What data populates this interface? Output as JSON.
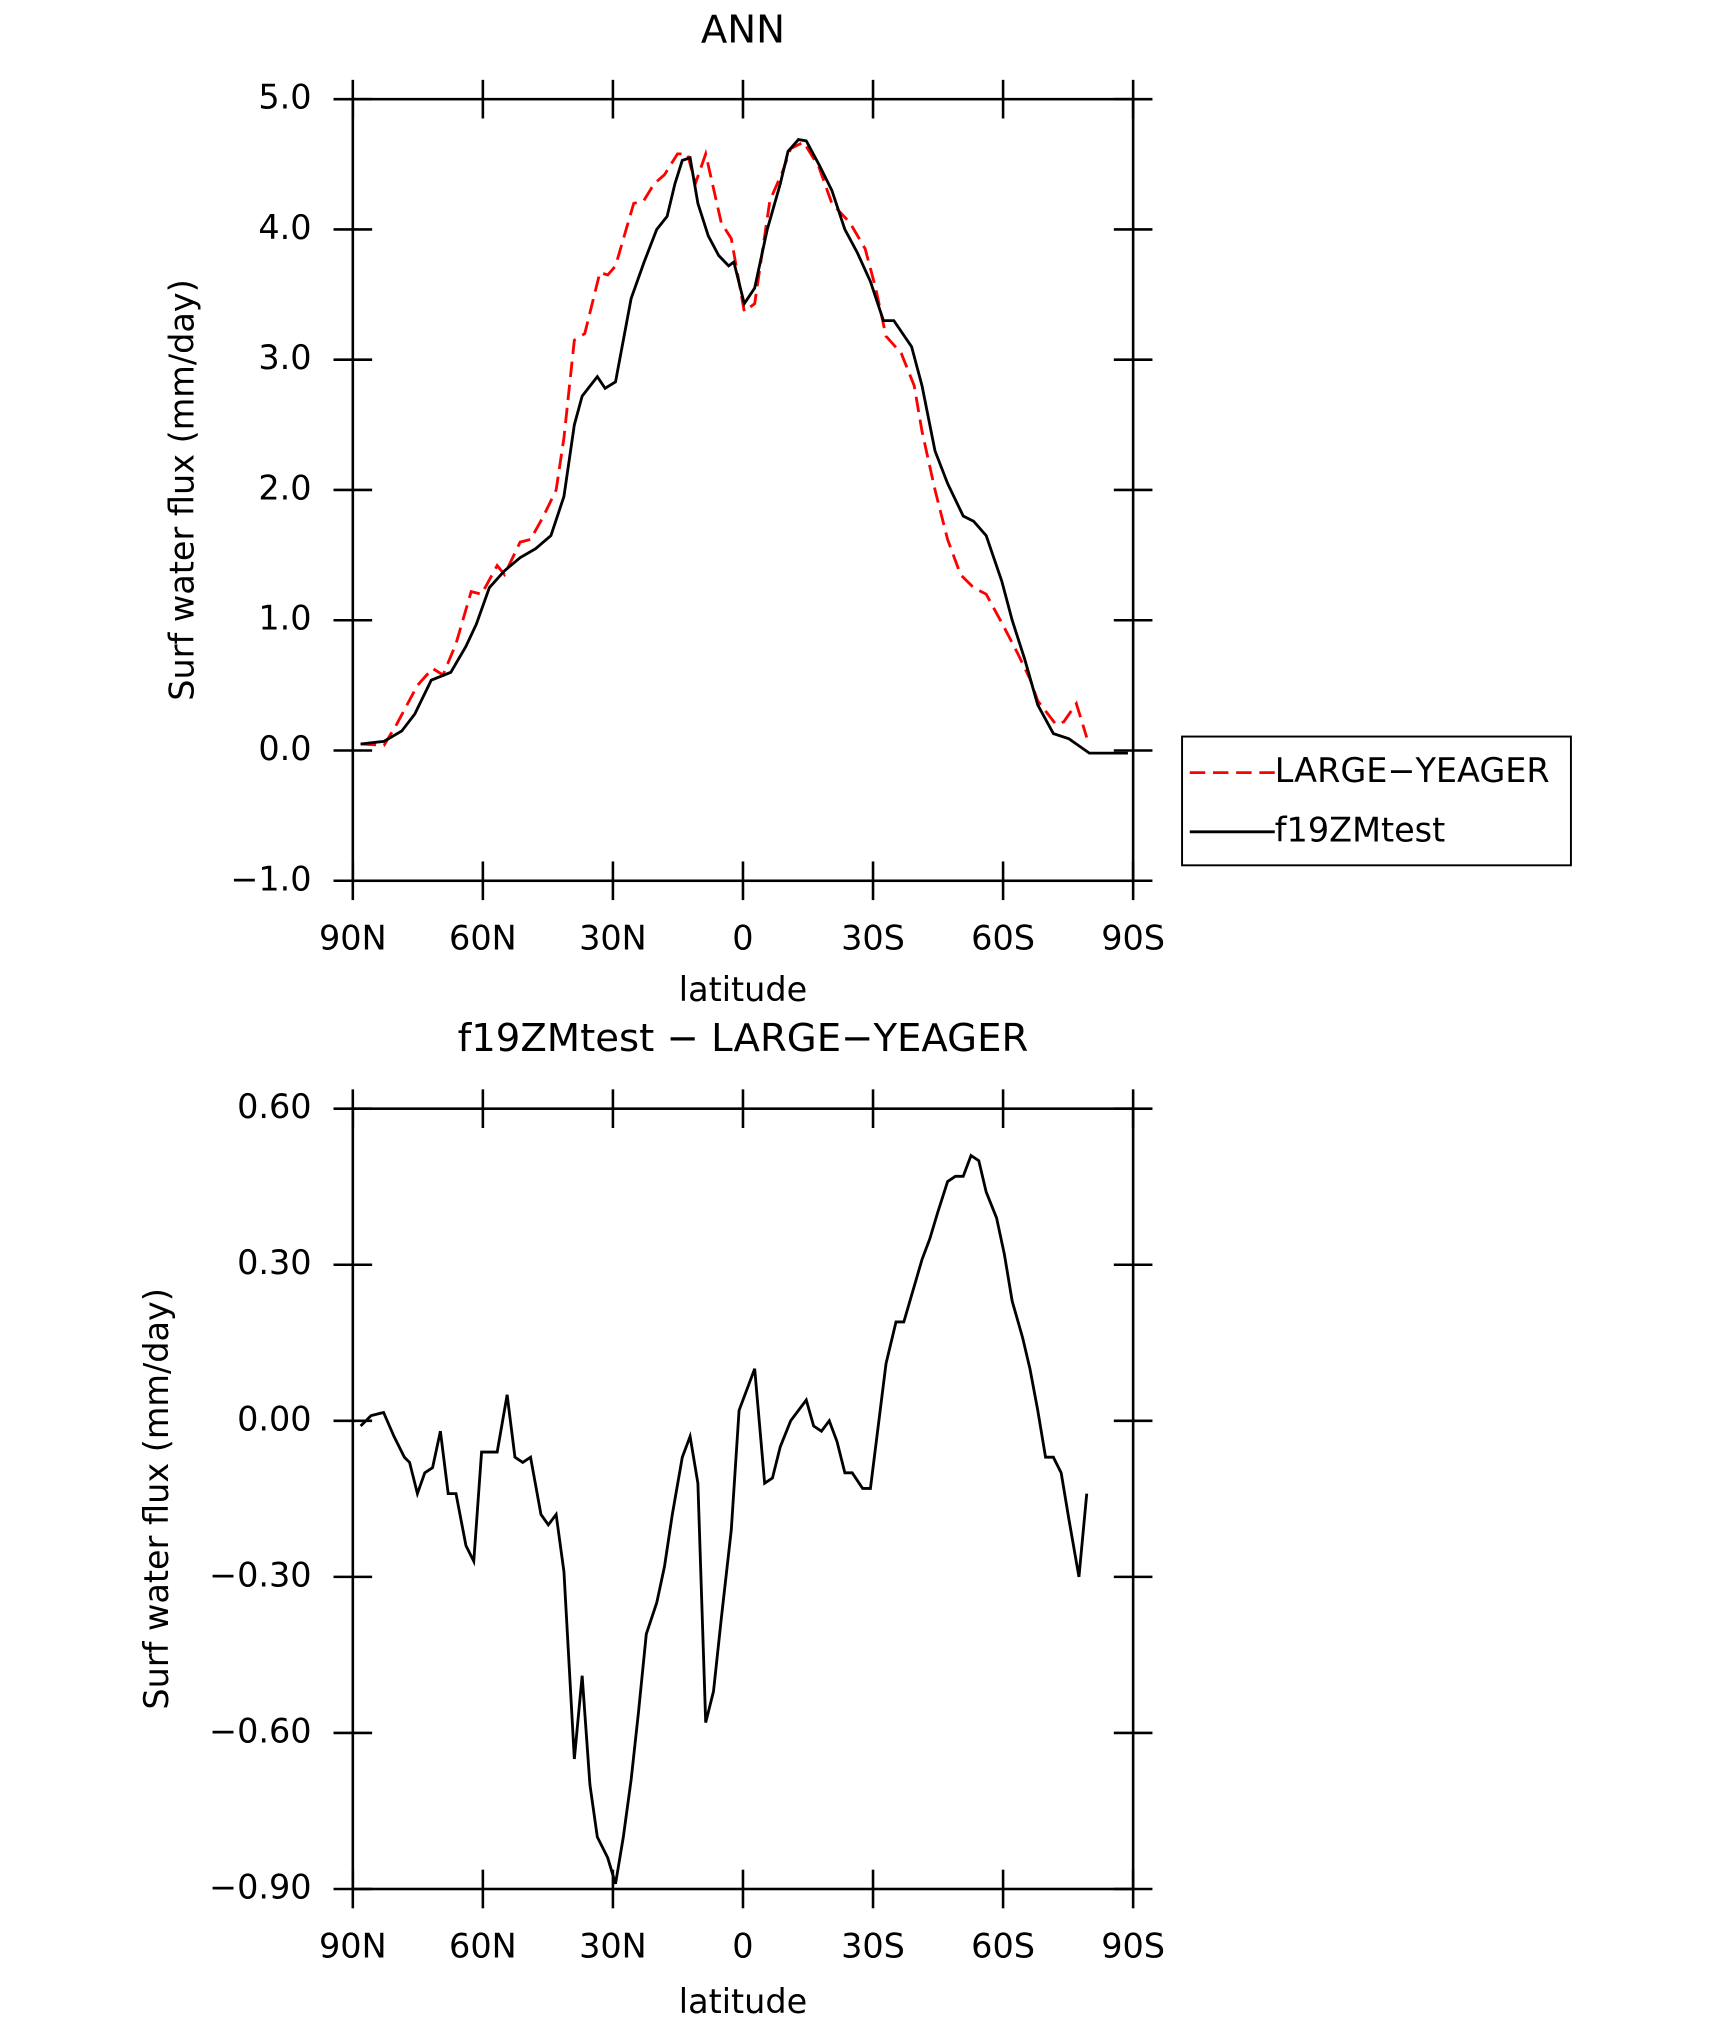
{
  "chart_data": [
    {
      "type": "line",
      "title": "ANN",
      "xlabel": "latitude",
      "ylabel": "Surf water flux (mm/day)",
      "xlim": [
        90,
        -90
      ],
      "xticks": [
        {
          "value": 90,
          "label": "90N"
        },
        {
          "value": 60,
          "label": "60N"
        },
        {
          "value": 30,
          "label": "30N"
        },
        0,
        {
          "value": -30,
          "label": "30S"
        },
        {
          "value": -60,
          "label": "60S"
        },
        {
          "value": -90,
          "label": "90S"
        }
      ],
      "ylim": [
        -1,
        5
      ],
      "yticks": [
        {
          "value": -1,
          "label": "−1.0"
        },
        {
          "value": 0,
          "label": "0.0"
        },
        {
          "value": 1,
          "label": "1.0"
        },
        {
          "value": 2,
          "label": "2.0"
        },
        {
          "value": 3,
          "label": "3.0"
        },
        {
          "value": 4,
          "label": "4.0"
        },
        {
          "value": 5,
          "label": "5.0"
        }
      ],
      "legend": "right",
      "series": [
        {
          "name": "LARGE−YEAGER",
          "color": "#ff0000",
          "dash": true,
          "x": [
            88.2,
            82.8,
            79.9,
            75.1,
            71.6,
            69.2,
            66.2,
            62.7,
            60.3,
            56.7,
            55.0,
            51.4,
            49.0,
            46.0,
            43.1,
            41.3,
            38.9,
            36.5,
            33.0,
            31.2,
            29.4,
            25.2,
            22.9,
            20.5,
            18.1,
            15.1,
            12.8,
            11.0,
            8.6,
            5.0,
            2.7,
            -0.3,
            -2.7,
            -6.2,
            -9.2,
            -11.0,
            -14.0,
            -17.5,
            -20.5,
            -24.7,
            -28.2,
            -30.6,
            -33.0,
            -36.5,
            -39.5,
            -41.3,
            -44.3,
            -47.2,
            -50.2,
            -53.2,
            -56.1,
            -59.7,
            -63.3,
            -66.2,
            -68.0,
            -72.2,
            -74.0,
            -76.9,
            -79.3
          ],
          "values": [
            0.05,
            0.04,
            0.2,
            0.5,
            0.63,
            0.58,
            0.82,
            1.22,
            1.2,
            1.42,
            1.35,
            1.6,
            1.62,
            1.8,
            2.0,
            2.4,
            3.15,
            3.2,
            3.67,
            3.65,
            3.72,
            4.2,
            4.22,
            4.35,
            4.42,
            4.58,
            4.58,
            4.35,
            4.58,
            4.05,
            3.93,
            3.37,
            3.43,
            4.22,
            4.45,
            4.62,
            4.67,
            4.48,
            4.2,
            4.05,
            3.85,
            3.55,
            3.18,
            3.05,
            2.8,
            2.45,
            2.0,
            1.62,
            1.35,
            1.25,
            1.2,
            0.98,
            0.75,
            0.55,
            0.38,
            0.2,
            0.22,
            0.36,
            0.1
          ]
        },
        {
          "name": "f19ZMtest",
          "color": "#000000",
          "dash": false,
          "x": [
            88.2,
            82.8,
            78.7,
            75.7,
            71.9,
            67.4,
            63.9,
            61.5,
            58.5,
            55.0,
            51.4,
            47.8,
            44.3,
            41.3,
            38.9,
            37.1,
            33.6,
            31.8,
            29.4,
            25.8,
            22.8,
            19.9,
            17.5,
            15.7,
            14.0,
            12.2,
            10.4,
            8.0,
            5.6,
            3.3,
            2.1,
            -0.3,
            -2.7,
            -5.6,
            -8.6,
            -10.4,
            -12.8,
            -14.6,
            -17.5,
            -20.5,
            -23.5,
            -26.4,
            -29.4,
            -32.4,
            -34.8,
            -38.9,
            -41.3,
            -44.3,
            -47.2,
            -50.8,
            -53.2,
            -56.1,
            -59.7,
            -62.1,
            -65.0,
            -68.0,
            -71.6,
            -75.2,
            -76.9,
            -79.9,
            -84.7,
            -88.8
          ],
          "values": [
            0.05,
            0.07,
            0.15,
            0.28,
            0.54,
            0.6,
            0.8,
            0.97,
            1.25,
            1.38,
            1.48,
            1.55,
            1.65,
            1.95,
            2.5,
            2.72,
            2.87,
            2.78,
            2.83,
            3.47,
            3.75,
            4.0,
            4.1,
            4.35,
            4.53,
            4.55,
            4.2,
            3.95,
            3.8,
            3.72,
            3.75,
            3.43,
            3.55,
            4.0,
            4.35,
            4.6,
            4.69,
            4.68,
            4.5,
            4.3,
            4.0,
            3.82,
            3.6,
            3.3,
            3.3,
            3.1,
            2.8,
            2.3,
            2.05,
            1.8,
            1.76,
            1.65,
            1.3,
            1.0,
            0.7,
            0.35,
            0.13,
            0.09,
            0.05,
            -0.02,
            -0.02,
            -0.02
          ]
        }
      ]
    },
    {
      "type": "line",
      "title": "f19ZMtest − LARGE−YEAGER",
      "xlabel": "latitude",
      "ylabel": "Surf water flux (mm/day)",
      "xlim": [
        90,
        -90
      ],
      "xticks": [
        {
          "value": 90,
          "label": "90N"
        },
        {
          "value": 60,
          "label": "60N"
        },
        {
          "value": 30,
          "label": "30N"
        },
        0,
        {
          "value": -30,
          "label": "30S"
        },
        {
          "value": -60,
          "label": "60S"
        },
        {
          "value": -90,
          "label": "90S"
        }
      ],
      "ylim": [
        -0.9,
        0.6
      ],
      "yticks": [
        {
          "value": -0.9,
          "label": "−0.90"
        },
        {
          "value": -0.6,
          "label": "−0.60"
        },
        {
          "value": -0.3,
          "label": "−0.30"
        },
        {
          "value": 0,
          "label": "0.00"
        },
        {
          "value": 0.3,
          "label": "0.30"
        },
        {
          "value": 0.6,
          "label": "0.60"
        }
      ],
      "color": "#000000",
      "x": [
        88.2,
        85.8,
        82.9,
        80.5,
        78.1,
        76.9,
        75.1,
        73.4,
        71.6,
        69.8,
        68.0,
        66.2,
        63.9,
        62.1,
        60.3,
        56.7,
        54.4,
        52.6,
        50.8,
        49.0,
        46.6,
        44.9,
        43.1,
        41.3,
        38.9,
        37.1,
        35.3,
        33.6,
        31.2,
        29.4,
        27.6,
        25.8,
        24.1,
        22.3,
        19.9,
        18.1,
        16.3,
        14.0,
        12.2,
        10.4,
        8.6,
        6.8,
        5.0,
        2.7,
        0.9,
        -0.9,
        -2.7,
        -5.0,
        -6.8,
        -8.6,
        -11.0,
        -14.6,
        -16.3,
        -18.1,
        -19.9,
        -21.7,
        -23.5,
        -25.2,
        -27.6,
        -29.4,
        -31.2,
        -33.0,
        -35.3,
        -37.1,
        -41.3,
        -43.1,
        -44.9,
        -47.2,
        -49.0,
        -50.8,
        -52.6,
        -54.4,
        -56.1,
        -58.5,
        -60.3,
        -62.1,
        -64.5,
        -66.2,
        -68.0,
        -69.8,
        -71.6,
        -73.4,
        -75.2,
        -77.5,
        -79.3
      ],
      "values": [
        -0.01,
        0.01,
        0.016,
        -0.03,
        -0.07,
        -0.08,
        -0.14,
        -0.1,
        -0.09,
        -0.02,
        -0.14,
        -0.14,
        -0.24,
        -0.27,
        -0.06,
        -0.06,
        0.05,
        -0.07,
        -0.08,
        -0.07,
        -0.18,
        -0.2,
        -0.18,
        -0.29,
        -0.65,
        -0.49,
        -0.7,
        -0.8,
        -0.84,
        -0.89,
        -0.8,
        -0.69,
        -0.56,
        -0.41,
        -0.35,
        -0.28,
        -0.18,
        -0.07,
        -0.03,
        -0.12,
        -0.58,
        -0.52,
        -0.38,
        -0.21,
        0.02,
        0.06,
        0.1,
        -0.12,
        -0.11,
        -0.05,
        0.0,
        0.04,
        -0.01,
        -0.02,
        0.0,
        -0.04,
        -0.1,
        -0.1,
        -0.13,
        -0.13,
        -0.01,
        0.11,
        0.19,
        0.19,
        0.31,
        0.35,
        0.4,
        0.46,
        0.47,
        0.47,
        0.51,
        0.5,
        0.44,
        0.39,
        0.32,
        0.23,
        0.16,
        0.1,
        0.02,
        -0.07,
        -0.07,
        -0.1,
        -0.19,
        -0.3,
        -0.14
      ]
    }
  ]
}
